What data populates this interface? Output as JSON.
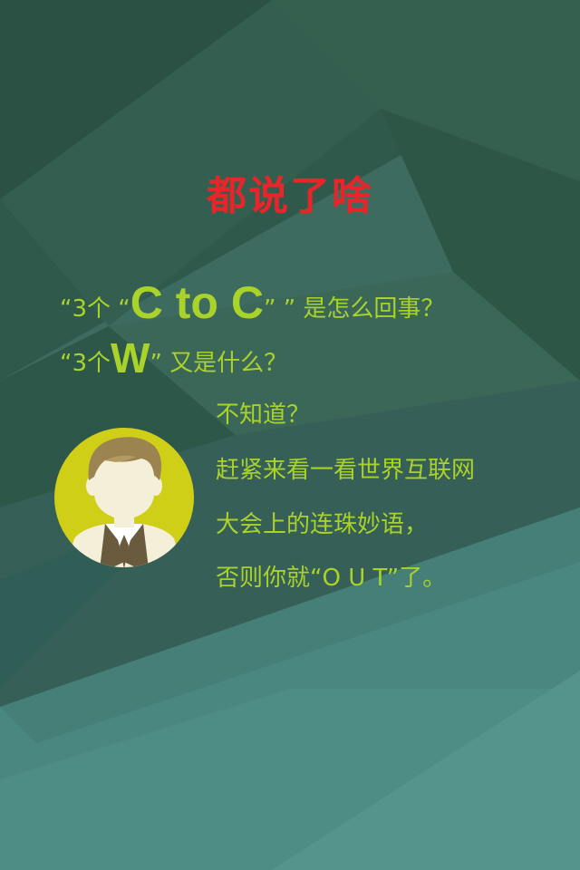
{
  "colors": {
    "title": "#e8262a",
    "accent": "#a9d22a",
    "background": "#3a6a5e",
    "avatar_ring": "#cfcf18"
  },
  "title": "都说了啥",
  "line1": {
    "prefix": "“3个 “",
    "big": "C to C",
    "suffix": "” ” 是怎么回事？"
  },
  "line2": {
    "prefix": "“3个",
    "big": "W",
    "suffix": "” 又是什么？"
  },
  "message": [
    "不知道？",
    "赶紧来看一看世界互联网",
    "大会上的连珠妙语，",
    "否则你就“O U T”了。"
  ],
  "icons": {
    "avatar": "man-avatar-icon"
  }
}
